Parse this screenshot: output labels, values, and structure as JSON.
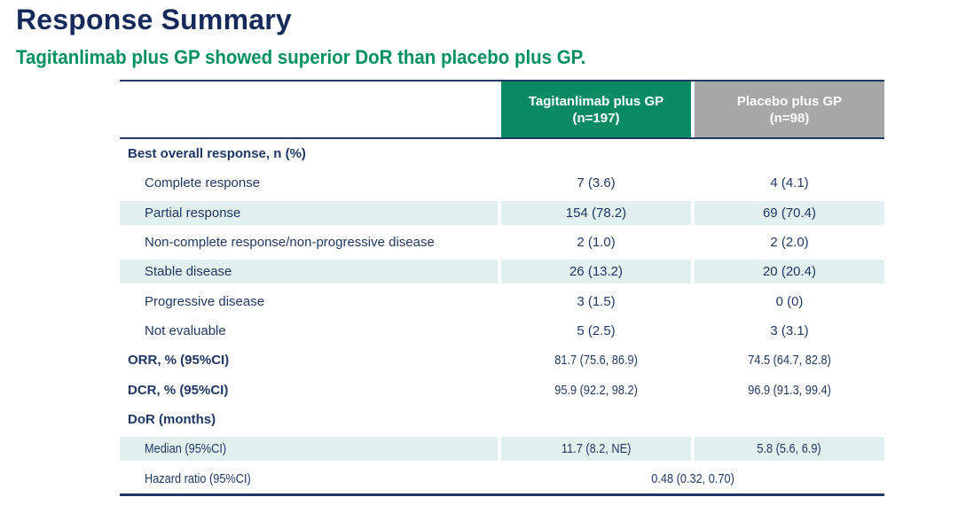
{
  "page": {
    "title": "Response Summary",
    "subtitle": "Tagitanlimab plus GP showed superior DoR than placebo plus GP."
  },
  "colors": {
    "title-navy": "#15295B",
    "navy": "#1F3864",
    "green": "#088B60",
    "green-text": "#00915E",
    "gray": "#A7A7A7",
    "band": "#E3F0F0"
  },
  "table": {
    "header": {
      "col1": {
        "line1": "Tagitanlimab plus GP",
        "line2": "(n=197)"
      },
      "col2": {
        "line1": "Placebo plus GP",
        "line2": "(n=98)"
      }
    },
    "rows": [
      {
        "label": "Best overall response, n (%)"
      },
      {
        "label": "Complete response",
        "v1": "7 (3.6)",
        "v2": "4 (4.1)"
      },
      {
        "label": "Partial response",
        "v1": "154 (78.2)",
        "v2": "69 (70.4)"
      },
      {
        "label": "Non-complete response/non-progressive disease",
        "v1": "2 (1.0)",
        "v2": "2 (2.0)"
      },
      {
        "label": "Stable disease",
        "v1": "26 (13.2)",
        "v2": "20 (20.4)"
      },
      {
        "label": "Progressive disease",
        "v1": "3 (1.5)",
        "v2": "0 (0)"
      },
      {
        "label": "Not evaluable",
        "v1": "5 (2.5)",
        "v2": "3 (3.1)"
      },
      {
        "label": "ORR, % (95%CI)",
        "v1": "81.7 (75.6, 86.9)",
        "v2": "74.5 (64.7, 82.8)"
      },
      {
        "label": "DCR, % (95%CI)",
        "v1": "95.9 (92.2, 98.2)",
        "v2": "96.9 (91.3, 99.4)"
      },
      {
        "label": "DoR (months)"
      },
      {
        "label": "Median (95%CI)",
        "v1": "11.7 (8.2, NE)",
        "v2": "5.8 (5.6, 6.9)"
      },
      {
        "label": "Hazard ratio (95%CI)",
        "span": "0.48 (0.32, 0.70)"
      }
    ]
  }
}
